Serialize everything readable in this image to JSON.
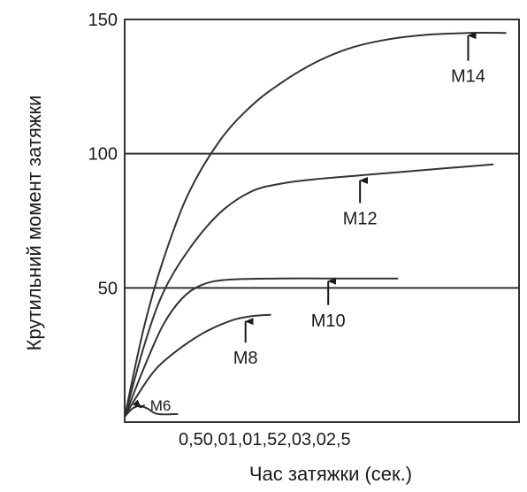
{
  "chart_data": {
    "type": "line",
    "xlabel": "Час затяжки (сек.)",
    "ylabel": "Крутильний момент затяжки",
    "xlim": [
      0,
      3.1
    ],
    "ylim": [
      0,
      150
    ],
    "x_tick_text": "0,50,01,01,52,03,02,5",
    "y_ticks": [
      50,
      100,
      150
    ],
    "reference_lines_y": [
      50,
      100
    ],
    "series": [
      {
        "name": "M14",
        "points": [
          [
            0,
            2
          ],
          [
            0.15,
            35
          ],
          [
            0.3,
            60
          ],
          [
            0.5,
            85
          ],
          [
            0.75,
            105
          ],
          [
            1.0,
            118
          ],
          [
            1.25,
            127
          ],
          [
            1.5,
            134
          ],
          [
            1.75,
            139
          ],
          [
            2.0,
            142
          ],
          [
            2.3,
            144
          ],
          [
            2.7,
            145
          ],
          [
            3.0,
            145
          ]
        ],
        "label_anchor": [
          2.7,
          145
        ],
        "label_pos": [
          2.7,
          128
        ]
      },
      {
        "name": "M12",
        "points": [
          [
            0,
            2
          ],
          [
            0.15,
            28
          ],
          [
            0.3,
            48
          ],
          [
            0.5,
            64
          ],
          [
            0.75,
            78
          ],
          [
            1.0,
            86
          ],
          [
            1.25,
            89
          ],
          [
            1.5,
            90.5
          ],
          [
            2.0,
            92.5
          ],
          [
            2.5,
            94.5
          ],
          [
            2.9,
            96
          ]
        ],
        "label_anchor": [
          1.85,
          91
        ],
        "label_pos": [
          1.85,
          75
        ]
      },
      {
        "name": "M10",
        "points": [
          [
            0,
            2
          ],
          [
            0.15,
            20
          ],
          [
            0.3,
            36
          ],
          [
            0.45,
            46
          ],
          [
            0.6,
            51
          ],
          [
            0.8,
            53
          ],
          [
            1.2,
            53.5
          ],
          [
            1.6,
            53.5
          ],
          [
            2.0,
            53.5
          ],
          [
            2.15,
            53.5
          ]
        ],
        "label_anchor": [
          1.6,
          53.5
        ],
        "label_pos": [
          1.6,
          37
        ]
      },
      {
        "name": "M8",
        "points": [
          [
            0,
            2
          ],
          [
            0.1,
            10
          ],
          [
            0.25,
            20
          ],
          [
            0.45,
            28
          ],
          [
            0.65,
            34
          ],
          [
            0.85,
            38
          ],
          [
            1.0,
            39.5
          ],
          [
            1.15,
            40
          ]
        ],
        "label_anchor": [
          0.95,
          38.5
        ],
        "label_pos": [
          0.95,
          23
        ]
      },
      {
        "name": "M6",
        "points": [
          [
            0,
            2
          ],
          [
            0.06,
            5
          ],
          [
            0.12,
            6
          ],
          [
            0.18,
            5
          ],
          [
            0.26,
            3
          ],
          [
            0.42,
            3
          ]
        ],
        "label_anchor": [
          0.12,
          6
        ],
        "label_pos": [
          0.2,
          7
        ]
      }
    ]
  }
}
